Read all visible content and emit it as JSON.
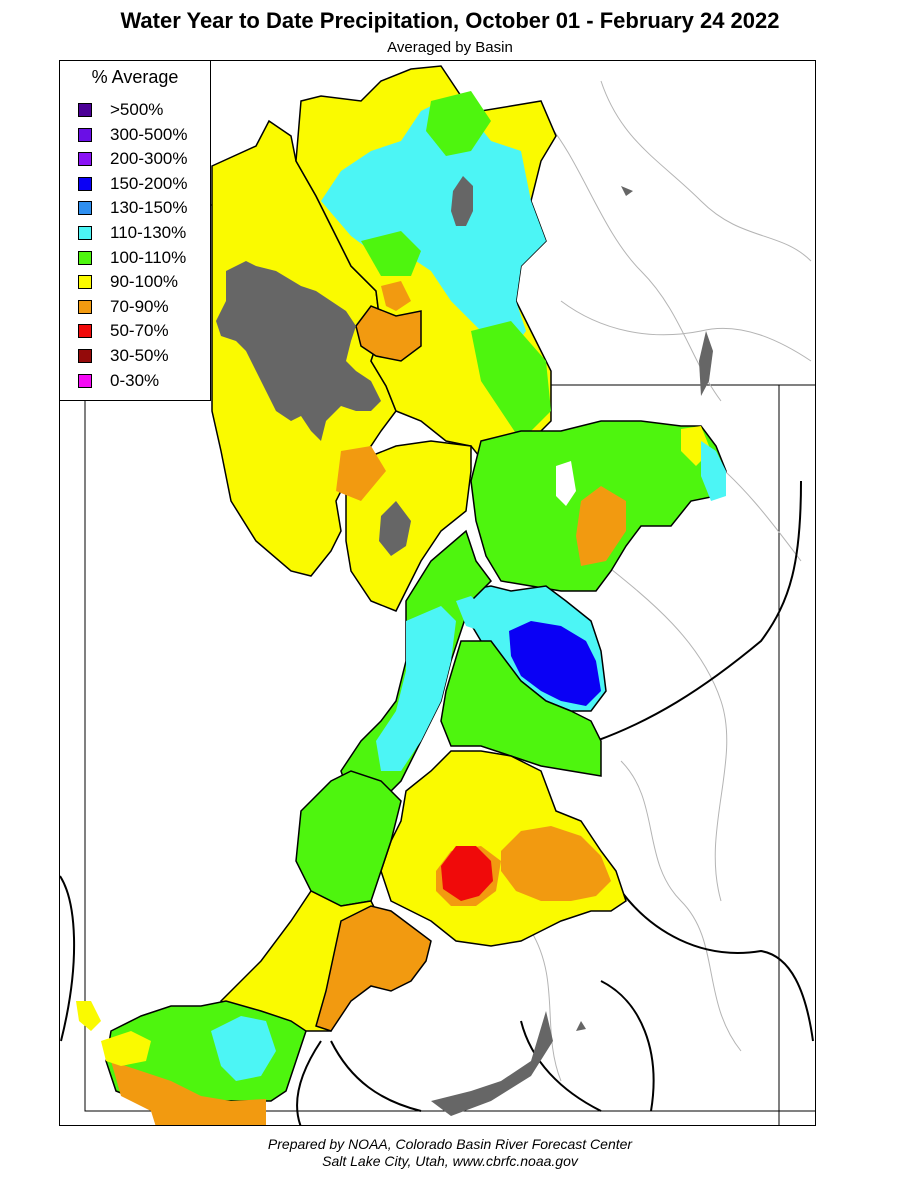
{
  "title": "Water Year to Date Precipitation, October 01  - February 24 2022",
  "subtitle": "Averaged by Basin",
  "legend": {
    "title": "% Average",
    "items": [
      {
        "label": ">500%",
        "color": "#4b0096"
      },
      {
        "label": "300-500%",
        "color": "#6a0fe6"
      },
      {
        "label": "200-300%",
        "color": "#8a12f5"
      },
      {
        "label": "150-200%",
        "color": "#0a00f5"
      },
      {
        "label": "130-150%",
        "color": "#2e8ff0"
      },
      {
        "label": "110-130%",
        "color": "#4cf5f5"
      },
      {
        "label": "100-110%",
        "color": "#4ef50e"
      },
      {
        "label": "90-100%",
        "color": "#fafa00"
      },
      {
        "label": "70-90%",
        "color": "#f29a10"
      },
      {
        "label": "50-70%",
        "color": "#f00a0a"
      },
      {
        "label": "30-50%",
        "color": "#940a0a"
      },
      {
        "label": "0-30%",
        "color": "#f50af5"
      }
    ]
  },
  "no_data_color": "#666666",
  "credit": {
    "line1": "Prepared by NOAA, Colorado Basin River Forecast Center",
    "line2": "Salt Lake City, Utah, www.cbrfc.noaa.gov"
  }
}
